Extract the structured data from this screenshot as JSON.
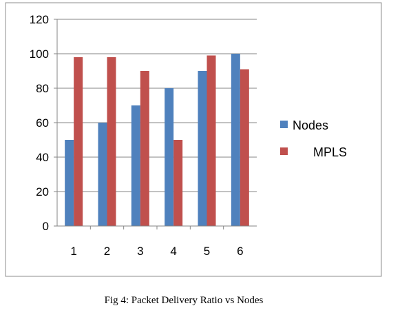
{
  "chart_data": {
    "type": "bar",
    "categories": [
      "1",
      "2",
      "3",
      "4",
      "5",
      "6"
    ],
    "series": [
      {
        "name": "Nodes",
        "values": [
          50,
          60,
          70,
          80,
          90,
          100
        ],
        "color": "#4F81BD"
      },
      {
        "name": "MPLS",
        "values": [
          98,
          98,
          90,
          50,
          99,
          91
        ],
        "color": "#C0504D"
      }
    ],
    "ylim": [
      0,
      120
    ],
    "yticks": [
      0,
      20,
      40,
      60,
      80,
      100,
      120
    ],
    "grid": true,
    "legend_position": "right"
  },
  "caption": "Fig 4: Packet Delivery Ratio vs Nodes"
}
